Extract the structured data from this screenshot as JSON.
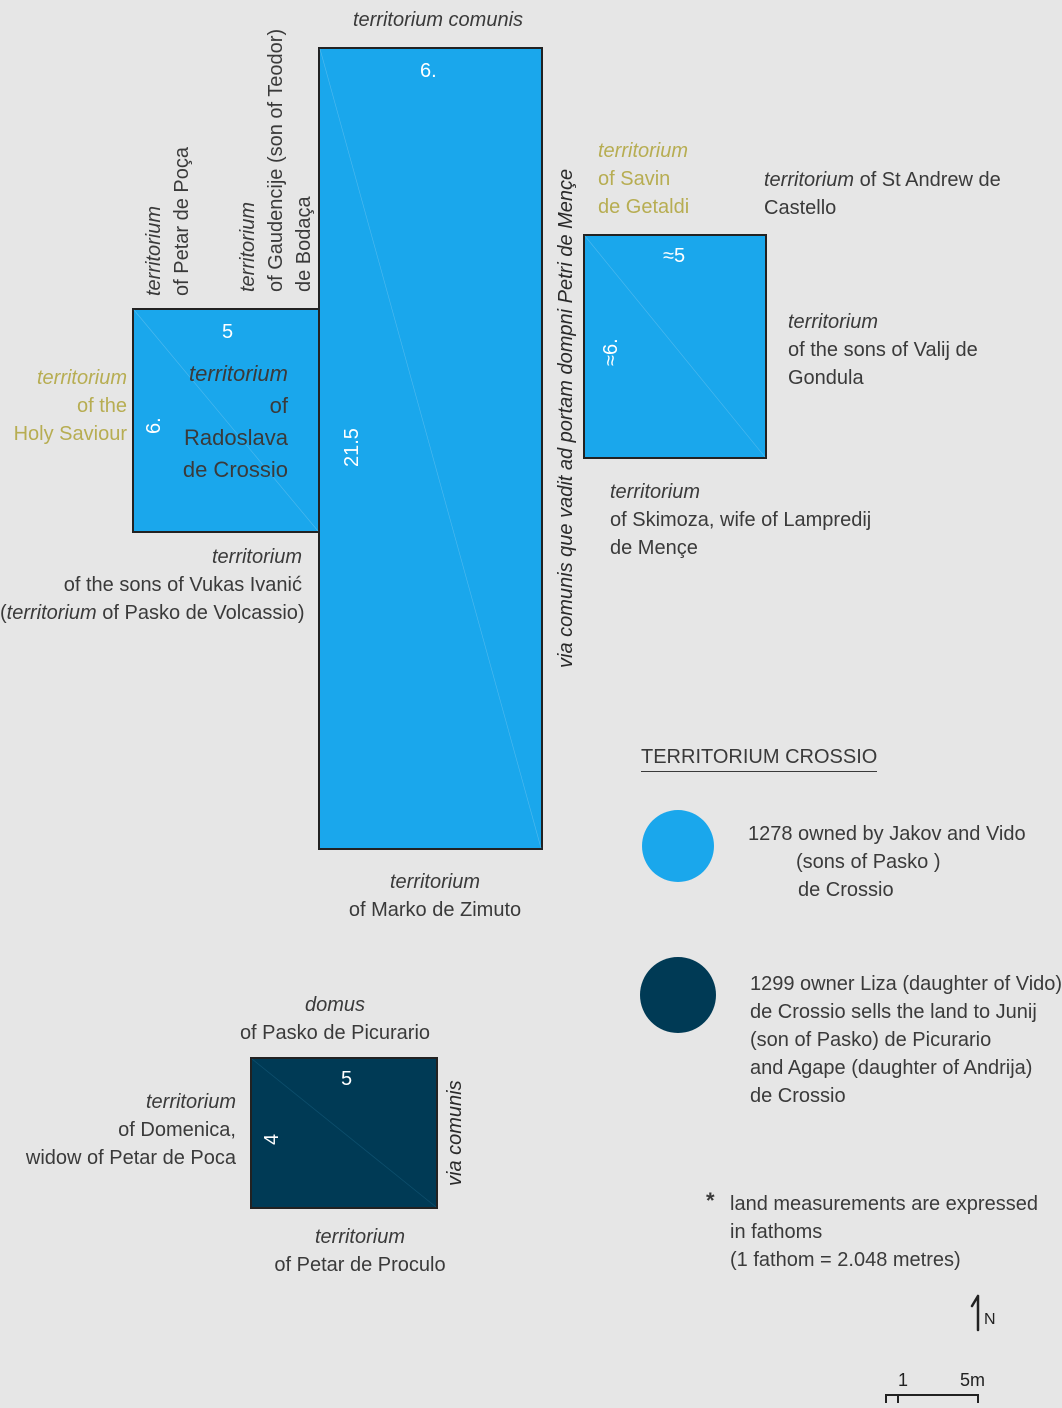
{
  "colors": {
    "background": "#e6e6e6",
    "plot_1278": "#1aa7ec",
    "plot_1299": "#003a55",
    "church_label": "#b7ad52",
    "text": "#3a3a3a"
  },
  "labels": {
    "top_comunis": "territorium comunis",
    "petar_poca": {
      "line1": "territorium",
      "line2": "of Petar de Poça"
    },
    "gaudencije": {
      "line1": "territorium",
      "line2": "of Gaudencije (son of Teodor)",
      "line3": "de Bodaça"
    },
    "savin": {
      "line1": "territorium",
      "line2": "of Savin",
      "line3": "de Getaldi"
    },
    "st_andrew": {
      "line1_italic": "territorium",
      "line1_rest": " of St Andrew de",
      "line2": "Castello"
    },
    "holy_saviour": {
      "line1": "territorium",
      "line2": "of the",
      "line3": "Holy Saviour"
    },
    "radoslava": {
      "line1": "territorium",
      "line2": "of",
      "line3": "Radoslava",
      "line4": "de Crossio"
    },
    "via_comunis_long": "via comunis que vadit ad portam dompni Petri de Mençe",
    "valij": {
      "line1": "territorium",
      "line2": "of the sons of Valij de",
      "line3": "Gondula"
    },
    "skimoza": {
      "line1": "territorium",
      "line2": "of Skimoza, wife of Lampredij",
      "line3": "de Mençe"
    },
    "vukas": {
      "line1": "territorium",
      "line2": "of the sons of Vukas Ivanić",
      "line3_open": "(",
      "line3_italic": "territorium",
      "line3_rest": " of Pasko de Volcassio)"
    },
    "zimuto": {
      "line1": "territorium",
      "line2": "of Marko de Zimuto"
    },
    "domus": {
      "line1": "domus",
      "line2": "of Pasko de Picurario"
    },
    "domenica": {
      "line1": "territorium",
      "line2": "of Domenica,",
      "line3": "widow of Petar de Poca"
    },
    "via_comunis_short": "via comunis",
    "proculo": {
      "line1": "territorium",
      "line2": "of Petar de Proculo"
    }
  },
  "measurements": {
    "main_top": "6.",
    "main_side": "21.5",
    "left_top": "5",
    "left_side": "6.",
    "right_top": "≈5",
    "right_side": "≈6.",
    "dark_top": "5",
    "dark_side": "4"
  },
  "legend": {
    "title": "TERRITORIUM CROSSIO",
    "item1": {
      "line1": "1278 owned by Jakov and Vido",
      "line2": "(sons of Pasko )",
      "line3": "de Crossio"
    },
    "item2": {
      "line1": "1299 owner Liza (daughter of Vido)",
      "line2": "de Crossio sells the land to Junij",
      "line3": "(son of Pasko) de Picurario",
      "line4": "and Agape (daughter of Andrija)",
      "line5": "de Crossio"
    },
    "note": {
      "star": "*",
      "line1": "land measurements are expressed",
      "line2": "in fathoms",
      "line3": "(1 fathom = 2.048 metres)"
    }
  },
  "north": {
    "label": "N"
  },
  "scale": {
    "label_1": "1",
    "label_5m": "5m"
  }
}
